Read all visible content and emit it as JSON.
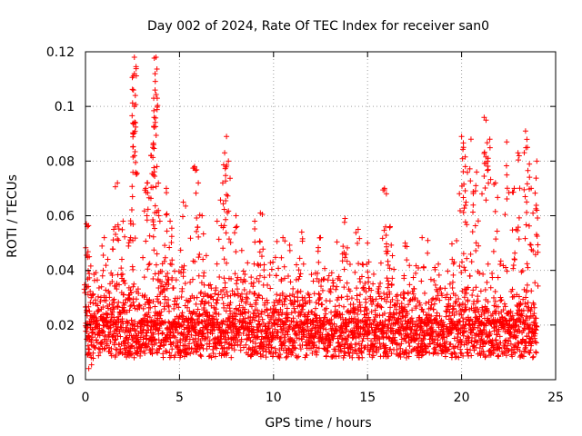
{
  "chart_data": {
    "type": "scatter",
    "title": "Day 002 of 2024, Rate Of TEC Index for receiver san0",
    "xlabel": "GPS time / hours",
    "ylabel": "ROTI / TECUs",
    "xlim": [
      0,
      25
    ],
    "ylim": [
      0,
      0.12
    ],
    "xticks": [
      0,
      5,
      10,
      15,
      20,
      25
    ],
    "xtick_labels": [
      "0",
      "5",
      "10",
      "15",
      "20",
      "25"
    ],
    "yticks": [
      0,
      0.02,
      0.04,
      0.06,
      0.08,
      0.1,
      0.12
    ],
    "ytick_labels": [
      "0",
      "0.02",
      "0.04",
      "0.06",
      "0.08",
      "0.1",
      "0.12"
    ],
    "grid": true,
    "marker": "+",
    "color": "#ff0000",
    "series": [
      {
        "name": "ROTI",
        "description_points": [
          [
            0.05,
            0.057
          ],
          [
            0.1,
            0.056
          ],
          [
            0.2,
            0.045
          ],
          [
            0.3,
            0.03
          ],
          [
            1.0,
            0.052
          ],
          [
            1.5,
            0.055
          ],
          [
            1.7,
            0.072
          ],
          [
            2.0,
            0.058
          ],
          [
            2.4,
            0.052
          ],
          [
            2.5,
            0.067
          ],
          [
            2.6,
            0.118
          ],
          [
            2.6,
            0.112
          ],
          [
            2.55,
            0.106
          ],
          [
            2.6,
            0.1
          ],
          [
            2.65,
            0.104
          ],
          [
            3.2,
            0.07
          ],
          [
            3.3,
            0.072
          ],
          [
            3.5,
            0.082
          ],
          [
            3.6,
            0.086
          ],
          [
            3.65,
            0.096
          ],
          [
            3.7,
            0.106
          ],
          [
            3.7,
            0.112
          ],
          [
            3.75,
            0.118
          ],
          [
            3.8,
            0.078
          ],
          [
            3.9,
            0.06
          ],
          [
            4.3,
            0.07
          ],
          [
            4.5,
            0.058
          ],
          [
            5.2,
            0.065
          ],
          [
            5.8,
            0.078
          ],
          [
            6.0,
            0.072
          ],
          [
            6.2,
            0.06
          ],
          [
            7.0,
            0.058
          ],
          [
            7.3,
            0.072
          ],
          [
            7.4,
            0.083
          ],
          [
            7.5,
            0.089
          ],
          [
            7.6,
            0.08
          ],
          [
            8.0,
            0.06
          ],
          [
            9.0,
            0.058
          ],
          [
            9.3,
            0.061
          ],
          [
            10.5,
            0.052
          ],
          [
            11.5,
            0.054
          ],
          [
            12.5,
            0.052
          ],
          [
            13.8,
            0.059
          ],
          [
            14.5,
            0.055
          ],
          [
            15.0,
            0.05
          ],
          [
            15.9,
            0.07
          ],
          [
            16.0,
            0.068
          ],
          [
            16.2,
            0.056
          ],
          [
            17.0,
            0.05
          ],
          [
            17.9,
            0.052
          ],
          [
            19.5,
            0.044
          ],
          [
            20.0,
            0.089
          ],
          [
            20.1,
            0.085
          ],
          [
            20.2,
            0.078
          ],
          [
            20.5,
            0.088
          ],
          [
            20.8,
            0.076
          ],
          [
            21.2,
            0.096
          ],
          [
            21.3,
            0.095
          ],
          [
            21.5,
            0.088
          ],
          [
            21.8,
            0.072
          ],
          [
            22.4,
            0.087
          ],
          [
            22.8,
            0.07
          ],
          [
            23.0,
            0.083
          ],
          [
            23.4,
            0.091
          ],
          [
            23.5,
            0.085
          ],
          [
            23.7,
            0.07
          ],
          [
            24.0,
            0.08
          ],
          [
            24.0,
            0.062
          ]
        ],
        "baseline_band": [
          0.008,
          0.022
        ],
        "x_range": [
          0,
          24
        ]
      }
    ]
  }
}
